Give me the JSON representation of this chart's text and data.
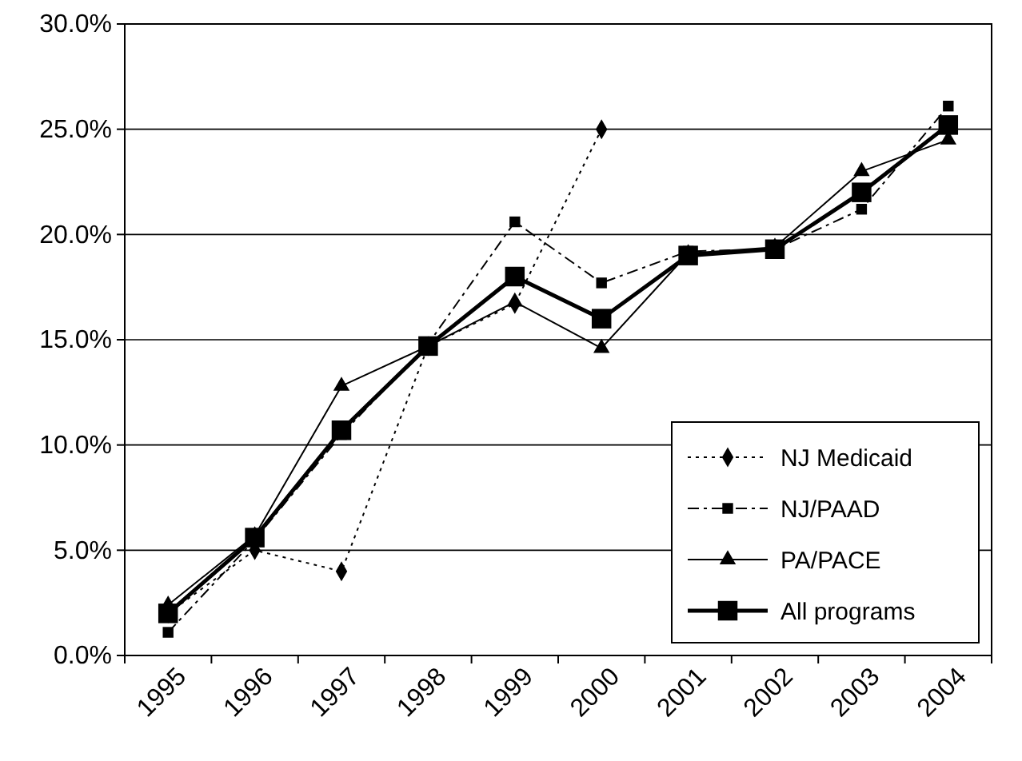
{
  "chart_data": {
    "type": "line",
    "categories": [
      "1995",
      "1996",
      "1997",
      "1998",
      "1999",
      "2000",
      "2001",
      "2002",
      "2003",
      "2004"
    ],
    "ylim": [
      0,
      0.3
    ],
    "yticks": [
      {
        "value": 0,
        "label": "0.0%"
      },
      {
        "value": 0.05,
        "label": "5.0%"
      },
      {
        "value": 0.1,
        "label": "10.0%"
      },
      {
        "value": 0.15,
        "label": "15.0%"
      },
      {
        "value": 0.2,
        "label": "20.0%"
      },
      {
        "value": 0.25,
        "label": "25.0%"
      },
      {
        "value": 0.3,
        "label": "30.0%"
      }
    ],
    "grid": "y",
    "legend": "bottom right",
    "series": [
      {
        "name": "NJ Medicaid",
        "color": "#000000",
        "marker": "diamond",
        "line_style": "dotted",
        "values": [
          0.02,
          0.05,
          0.04,
          0.147,
          0.167,
          0.25,
          null,
          null,
          null,
          null
        ]
      },
      {
        "name": "NJ/PAAD",
        "color": "#000000",
        "marker": "square",
        "line_style": "dashed",
        "values": [
          0.011,
          0.055,
          0.105,
          0.148,
          0.206,
          0.177,
          0.192,
          0.193,
          0.212,
          0.261
        ]
      },
      {
        "name": "PA/PACE",
        "color": "#000000",
        "marker": "triangle",
        "line_style": "solid",
        "values": [
          0.024,
          0.057,
          0.128,
          0.147,
          0.168,
          0.146,
          0.191,
          0.194,
          0.23,
          0.245
        ]
      },
      {
        "name": "All programs",
        "color": "#000000",
        "marker": "square",
        "line_style": "solid",
        "values": [
          0.02,
          0.056,
          0.107,
          0.147,
          0.18,
          0.16,
          0.19,
          0.193,
          0.22,
          0.252
        ]
      }
    ]
  }
}
